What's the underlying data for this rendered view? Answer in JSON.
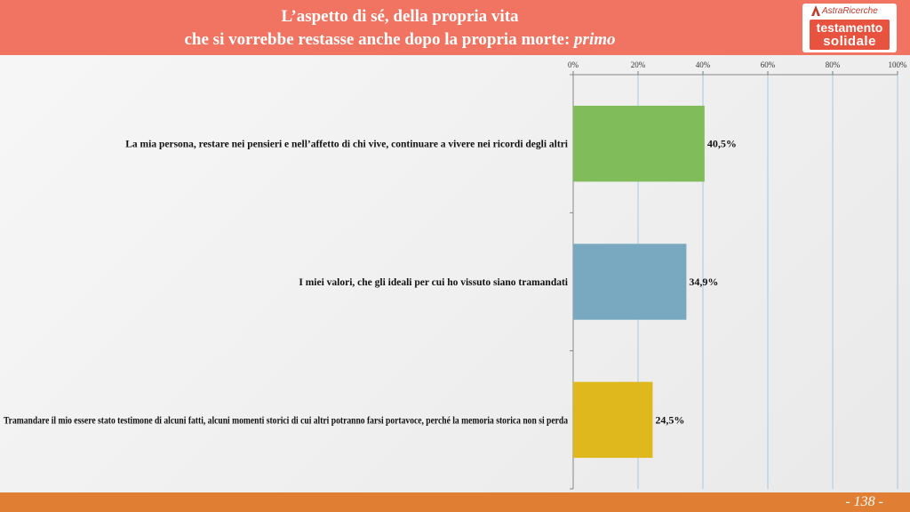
{
  "header": {
    "title_line1": "L’aspetto di sé, della propria vita",
    "title_line2": "che si vorrebbe restasse anche dopo la propria morte:",
    "title_emphasis": "primo",
    "logo_brand": "AstraRicerche",
    "logo_word1": "testamento",
    "logo_word2": "solidale"
  },
  "footer": {
    "page_number": "- 138 -"
  },
  "colors": {
    "header_bg": "#f07461",
    "footer_bg": "#e07f34",
    "bar1": "#80bd5a",
    "bar2": "#79a9c0",
    "bar3": "#dfb81e"
  },
  "chart_data": {
    "type": "bar",
    "orientation": "horizontal",
    "categories": [
      "La mia persona, restare nei pensieri e nell’affetto di chi vive, continuare a vivere nei ricordi degli altri",
      "I miei valori, che gli ideali per cui ho vissuto siano tramandati",
      "Tramandare il mio essere stato testimone di alcuni fatti, alcuni momenti storici di cui altri potranno farsi portavoce, perché la memoria storica non si perda"
    ],
    "values": [
      40.5,
      34.9,
      24.5
    ],
    "data_labels": [
      "40,5%",
      "34,9%",
      "24,5%"
    ],
    "bar_colors": [
      "#80bd5a",
      "#79a9c0",
      "#dfb81e"
    ],
    "xlim": [
      0,
      100
    ],
    "x_ticks": [
      0,
      20,
      40,
      60,
      80,
      100
    ],
    "x_tick_labels": [
      "0%",
      "20%",
      "40%",
      "60%",
      "80%",
      "100%"
    ],
    "axis_position": "top",
    "grid": true
  }
}
